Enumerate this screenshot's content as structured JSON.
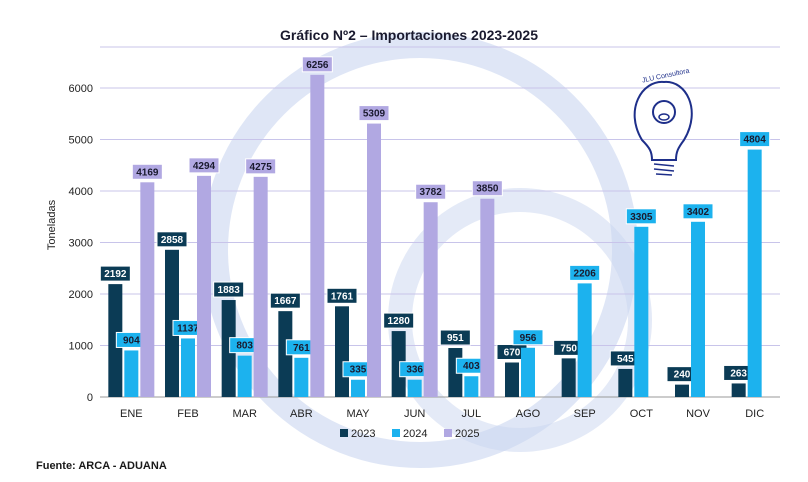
{
  "chart_data": {
    "type": "bar",
    "title": "Gráfico Nº2 – Importaciones 2023-2025",
    "xlabel": "",
    "ylabel": "Toneladas",
    "ylim": [
      0,
      6800
    ],
    "yticks": [
      0,
      1000,
      2000,
      3000,
      4000,
      5000,
      6000
    ],
    "grid": true,
    "legend_position": "bottom",
    "categories": [
      "ENE",
      "FEB",
      "MAR",
      "ABR",
      "MAY",
      "JUN",
      "JUL",
      "AGO",
      "SEP",
      "OCT",
      "NOV",
      "DIC"
    ],
    "series": [
      {
        "name": "2023",
        "color": "#0b3b55",
        "label_text": "#ffffff",
        "values": [
          2192,
          2858,
          1883,
          1667,
          1761,
          1280,
          951,
          670,
          750,
          545,
          240,
          263
        ]
      },
      {
        "name": "2024",
        "color": "#1cb2ee",
        "label_text": "#1a1a2e",
        "values": [
          904,
          1137,
          803,
          761,
          335,
          336,
          403,
          956,
          2206,
          3305,
          3402,
          4804
        ]
      },
      {
        "name": "2025",
        "color": "#b1a8e2",
        "label_text": "#1a1a2e",
        "values": [
          4169,
          4294,
          4275,
          6256,
          5309,
          3782,
          3850,
          null,
          null,
          null,
          null,
          null
        ]
      }
    ],
    "source": "Fuente: ARCA - ADUANA"
  },
  "watermark": {
    "logo_text": "JLU Consultora",
    "color": "#c9d5f0"
  }
}
